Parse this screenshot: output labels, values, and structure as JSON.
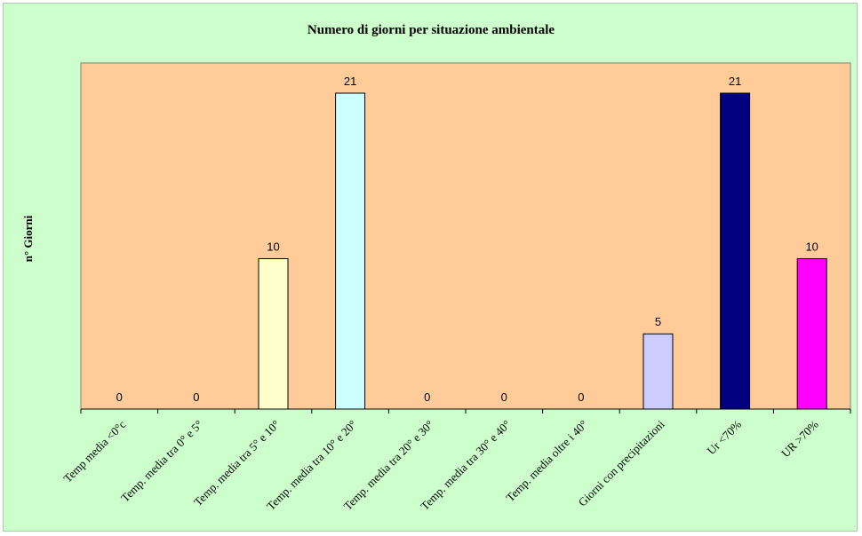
{
  "chart_data": {
    "type": "bar",
    "title": "Numero di giorni per situazione ambientale",
    "xlabel": "",
    "ylabel": "n° Giorni",
    "categories": [
      "Temp media <0°c",
      "Temp. media tra 0° e 5°",
      "Temp. media tra 5° e 10°",
      "Temp. media tra 10° e 20°",
      "Temp. media tra 20° e 30°",
      "Temp. media tra 30° e 40°",
      "Temp. media oltre i 40°",
      "Giorni con precipitazioni",
      "Ur <70%",
      "UR >70%"
    ],
    "values": [
      0,
      0,
      10,
      21,
      0,
      0,
      0,
      5,
      21,
      10
    ],
    "bar_colors": [
      "#ffffcc",
      "#ffffcc",
      "#ffffcc",
      "#ccffff",
      "#ccffff",
      "#ccffff",
      "#ccffff",
      "#ccccff",
      "#000080",
      "#ff00ff"
    ],
    "ylim": [
      0,
      21
    ],
    "plot_background": "#ffcc99",
    "chart_background": "#ccffcc",
    "grid": false,
    "legend": "none"
  }
}
